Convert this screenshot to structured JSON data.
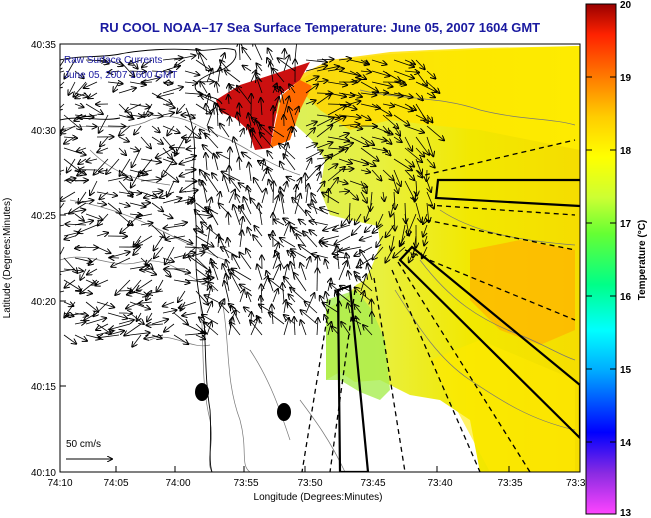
{
  "title": "RU COOL   NOAA–17  Sea Surface Temperature:  June 05, 2007 1604 GMT",
  "overlay_lines": [
    "Raw Surface Currents",
    "June 05, 2007 1600 GMT"
  ],
  "scale_label": "50 cm/s",
  "x_axis": {
    "label": "Longitude (Degrees:Minutes)",
    "ticks": [
      "74:10",
      "74:05",
      "74:00",
      "73:55",
      "73:50",
      "73:45",
      "73:40",
      "73:35",
      "73:3"
    ]
  },
  "y_axis": {
    "label": "Latitude (Degrees:Minutes)",
    "ticks": [
      "40:35",
      "40:30",
      "40:25",
      "40:20",
      "40:15",
      "40:10"
    ]
  },
  "colorbar": {
    "label": "Temperature (°C)",
    "ticks": [
      "20",
      "19",
      "18",
      "17",
      "16",
      "15",
      "14",
      "13"
    ],
    "range": [
      13,
      20
    ]
  },
  "colors": {
    "title": "#1a1aa0",
    "overlay": "#1a1aa0",
    "land": "#ffffff",
    "colormap": [
      "#ff44ff",
      "#8a2be2",
      "#0000ff",
      "#00aaff",
      "#00ffff",
      "#00ff88",
      "#66ff33",
      "#ccff33",
      "#ffff00",
      "#ffcc00",
      "#ff7700",
      "#ff2200",
      "#990000"
    ]
  }
}
